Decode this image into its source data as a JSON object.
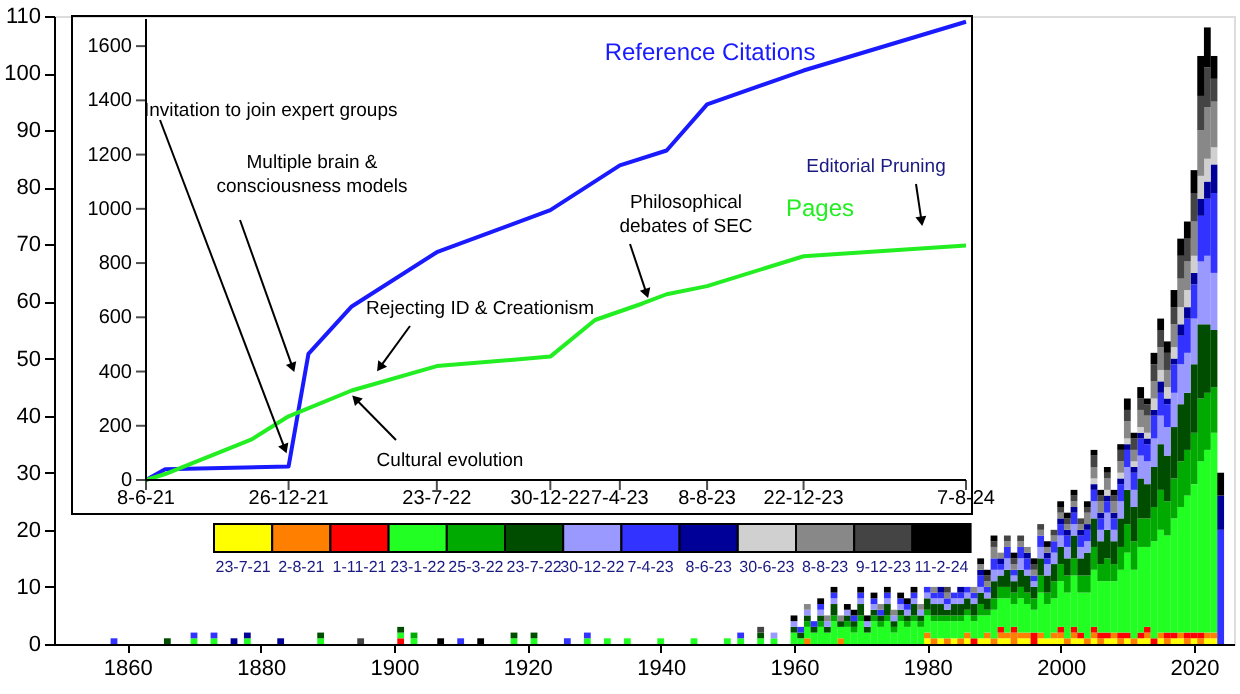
{
  "chart_data": [
    {
      "type": "bar",
      "stacked": true,
      "legend": "left",
      "x": [
        1858,
        1861,
        1866,
        1870,
        1873,
        1876,
        1878,
        1883,
        1889,
        1895,
        1901,
        1903,
        1907,
        1910,
        1913,
        1918,
        1921,
        1926,
        1929,
        1932,
        1935,
        1940,
        1945,
        1950,
        1952,
        1955,
        1957,
        1960,
        1961,
        1962,
        1963,
        1964,
        1965,
        1966,
        1967,
        1968,
        1969,
        1970,
        1971,
        1972,
        1973,
        1974,
        1975,
        1976,
        1977,
        1978,
        1979,
        1980,
        1981,
        1982,
        1983,
        1984,
        1985,
        1986,
        1987,
        1988,
        1989,
        1990,
        1991,
        1992,
        1993,
        1994,
        1995,
        1996,
        1997,
        1998,
        1999,
        2000,
        2001,
        2002,
        2003,
        2004,
        2005,
        2006,
        2007,
        2008,
        2009,
        2010,
        2011,
        2012,
        2013,
        2014,
        2015,
        2016,
        2017,
        2018,
        2019,
        2020,
        2021,
        2022,
        2023,
        2024
      ],
      "series": [
        {
          "name": "23-7-21",
          "color": "#ffff00",
          "values": [
            0,
            0,
            0,
            0,
            0,
            0,
            0,
            0,
            0,
            0,
            0,
            0,
            0,
            0,
            0,
            0,
            0,
            0,
            0,
            0,
            0,
            0,
            0,
            0,
            0,
            0,
            0,
            0,
            0,
            0,
            0,
            0,
            0,
            0,
            0,
            0,
            0,
            0,
            0,
            0,
            0,
            0,
            0,
            0,
            0,
            0,
            0,
            1,
            0,
            1,
            0,
            1,
            0,
            1,
            0,
            1,
            1,
            0,
            1,
            1,
            0,
            1,
            1,
            0,
            1,
            1,
            1,
            1,
            0,
            1,
            1,
            0,
            1,
            0,
            1,
            1,
            0,
            1,
            0,
            1,
            1,
            0,
            1,
            0,
            1,
            1,
            0,
            1,
            0,
            1,
            1,
            0
          ]
        },
        {
          "name": "2-8-21",
          "color": "#ff8000",
          "values": [
            0,
            0,
            0,
            0,
            0,
            0,
            0,
            0,
            0,
            0,
            0,
            0,
            0,
            0,
            0,
            0,
            0,
            0,
            0,
            0,
            0,
            0,
            0,
            0,
            0,
            0,
            0,
            0,
            0,
            1,
            0,
            0,
            0,
            0,
            1,
            0,
            0,
            0,
            0,
            0,
            0,
            0,
            0,
            0,
            0,
            0,
            0,
            1,
            1,
            0,
            1,
            0,
            1,
            1,
            0,
            0,
            1,
            1,
            1,
            1,
            2,
            1,
            1,
            0,
            1,
            0,
            1,
            1,
            1,
            1,
            0,
            1,
            1,
            1,
            0,
            1,
            1,
            0,
            1,
            0,
            1,
            0,
            1,
            1,
            0,
            1,
            1,
            0,
            1,
            1,
            1,
            0
          ]
        },
        {
          "name": "1-11-21",
          "color": "#ff0000",
          "values": [
            0,
            0,
            0,
            0,
            0,
            0,
            0,
            0,
            0,
            0,
            1,
            0,
            0,
            0,
            0,
            0,
            0,
            0,
            0,
            0,
            0,
            0,
            0,
            0,
            0,
            0,
            0,
            0,
            0,
            0,
            0,
            0,
            0,
            0,
            0,
            0,
            0,
            0,
            0,
            0,
            0,
            0,
            0,
            0,
            0,
            0,
            0,
            0,
            0,
            0,
            0,
            0,
            0,
            0,
            1,
            0,
            0,
            0,
            1,
            0,
            1,
            0,
            0,
            2,
            0,
            0,
            0,
            1,
            0,
            1,
            1,
            0,
            1,
            1,
            1,
            0,
            1,
            1,
            0,
            1,
            1,
            1,
            0,
            1,
            1,
            0,
            1,
            1,
            1,
            0,
            0,
            0
          ]
        },
        {
          "name": "23-1-22",
          "color": "#22ff22",
          "values": [
            0,
            0,
            0,
            1,
            1,
            0,
            1,
            0,
            1,
            0,
            1,
            1,
            0,
            0,
            0,
            1,
            1,
            0,
            1,
            1,
            1,
            1,
            1,
            1,
            1,
            1,
            1,
            2,
            1,
            2,
            2,
            3,
            2,
            4,
            2,
            3,
            2,
            4,
            2,
            4,
            3,
            4,
            2,
            4,
            3,
            4,
            3,
            3,
            3,
            3,
            3,
            3,
            3,
            3,
            3,
            4,
            3,
            5,
            5,
            6,
            4,
            6,
            5,
            4,
            7,
            6,
            6,
            8,
            8,
            9,
            7,
            8,
            10,
            9,
            9,
            9,
            11,
            14,
            12,
            15,
            14,
            17,
            18,
            17,
            20,
            22,
            24,
            26,
            30,
            32,
            35,
            0
          ]
        },
        {
          "name": "25-3-22",
          "color": "#00aa00",
          "values": [
            0,
            0,
            0,
            0,
            0,
            0,
            0,
            0,
            0,
            0,
            0,
            1,
            0,
            0,
            0,
            0,
            0,
            0,
            0,
            0,
            0,
            0,
            0,
            0,
            0,
            0,
            0,
            0,
            0,
            1,
            0,
            1,
            0,
            1,
            0,
            1,
            1,
            1,
            0,
            1,
            1,
            1,
            1,
            1,
            1,
            1,
            1,
            1,
            1,
            1,
            1,
            1,
            1,
            1,
            1,
            2,
            1,
            2,
            2,
            2,
            2,
            2,
            2,
            2,
            3,
            2,
            3,
            3,
            3,
            3,
            3,
            3,
            4,
            3,
            4,
            3,
            4,
            5,
            5,
            5,
            5,
            6,
            7,
            6,
            7,
            8,
            8,
            9,
            11,
            10,
            8,
            0
          ]
        },
        {
          "name": "23-7-22",
          "color": "#004d00",
          "values": [
            0,
            0,
            1,
            0,
            0,
            0,
            0,
            0,
            1,
            0,
            1,
            0,
            0,
            0,
            0,
            1,
            1,
            0,
            0,
            0,
            0,
            0,
            0,
            0,
            0,
            1,
            0,
            1,
            1,
            1,
            1,
            1,
            1,
            2,
            1,
            1,
            1,
            2,
            1,
            1,
            1,
            2,
            1,
            1,
            1,
            2,
            1,
            2,
            2,
            2,
            1,
            2,
            2,
            2,
            2,
            2,
            2,
            3,
            2,
            3,
            2,
            3,
            3,
            2,
            3,
            3,
            3,
            3,
            3,
            4,
            3,
            4,
            5,
            4,
            5,
            4,
            5,
            6,
            6,
            7,
            6,
            7,
            8,
            8,
            9,
            10,
            10,
            12,
            13,
            12,
            10,
            0
          ]
        },
        {
          "name": "30-12-22",
          "color": "#9999ff",
          "values": [
            0,
            0,
            0,
            0,
            0,
            0,
            0,
            0,
            0,
            0,
            0,
            0,
            0,
            0,
            0,
            0,
            0,
            0,
            0,
            0,
            0,
            0,
            0,
            0,
            0,
            0,
            1,
            1,
            0,
            1,
            0,
            1,
            1,
            1,
            0,
            1,
            0,
            1,
            1,
            1,
            0,
            1,
            1,
            1,
            1,
            1,
            1,
            1,
            1,
            1,
            1,
            1,
            1,
            1,
            1,
            1,
            1,
            2,
            1,
            2,
            1,
            2,
            1,
            1,
            2,
            2,
            2,
            2,
            2,
            2,
            2,
            2,
            3,
            2,
            3,
            2,
            3,
            4,
            3,
            4,
            4,
            5,
            5,
            5,
            6,
            7,
            7,
            8,
            11,
            12,
            10,
            0
          ]
        },
        {
          "name": "7-4-23",
          "color": "#3333ff",
          "values": [
            1,
            0,
            0,
            1,
            1,
            0,
            0,
            0,
            0,
            0,
            0,
            0,
            0,
            1,
            0,
            0,
            0,
            1,
            1,
            0,
            0,
            0,
            0,
            0,
            1,
            0,
            0,
            0,
            1,
            0,
            1,
            1,
            0,
            1,
            0,
            0,
            1,
            1,
            0,
            1,
            1,
            1,
            0,
            1,
            1,
            1,
            0,
            1,
            1,
            1,
            1,
            1,
            1,
            1,
            1,
            2,
            1,
            2,
            1,
            2,
            1,
            2,
            2,
            1,
            2,
            1,
            2,
            2,
            2,
            2,
            2,
            2,
            2,
            2,
            2,
            2,
            3,
            3,
            3,
            3,
            3,
            4,
            4,
            4,
            5,
            5,
            6,
            6,
            8,
            10,
            14,
            20
          ]
        },
        {
          "name": "8-6-23",
          "color": "#000099",
          "values": [
            0,
            0,
            0,
            0,
            0,
            1,
            1,
            1,
            0,
            0,
            0,
            0,
            0,
            0,
            0,
            0,
            0,
            0,
            0,
            0,
            0,
            0,
            0,
            0,
            0,
            0,
            0,
            0,
            0,
            0,
            0,
            0,
            0,
            0,
            0,
            0,
            0,
            0,
            0,
            0,
            0,
            0,
            0,
            0,
            0,
            0,
            0,
            0,
            0,
            1,
            0,
            0,
            1,
            0,
            0,
            1,
            0,
            0,
            1,
            0,
            0,
            0,
            1,
            0,
            0,
            1,
            0,
            1,
            1,
            1,
            1,
            1,
            1,
            1,
            1,
            1,
            1,
            1,
            1,
            1,
            1,
            1,
            2,
            1,
            1,
            2,
            2,
            2,
            3,
            3,
            5,
            6
          ]
        },
        {
          "name": "30-6-23",
          "color": "#d0d0d0",
          "values": [
            0,
            0,
            0,
            0,
            0,
            0,
            0,
            0,
            0,
            0,
            0,
            0,
            0,
            0,
            0,
            0,
            0,
            0,
            0,
            0,
            0,
            0,
            0,
            0,
            0,
            0,
            0,
            0,
            0,
            0,
            0,
            0,
            0,
            0,
            0,
            0,
            0,
            0,
            0,
            0,
            0,
            0,
            0,
            0,
            0,
            0,
            0,
            0,
            0,
            0,
            0,
            0,
            0,
            0,
            0,
            0,
            0,
            0,
            0,
            0,
            0,
            0,
            0,
            0,
            0,
            0,
            0,
            0,
            0,
            0,
            0,
            0,
            1,
            0,
            1,
            0,
            1,
            1,
            1,
            1,
            1,
            2,
            2,
            2,
            2,
            3,
            3,
            3,
            4,
            4,
            3,
            0
          ]
        },
        {
          "name": "8-8-23",
          "color": "#888888",
          "values": [
            0,
            0,
            0,
            0,
            0,
            0,
            0,
            0,
            0,
            0,
            0,
            0,
            0,
            0,
            0,
            0,
            0,
            0,
            0,
            0,
            0,
            0,
            0,
            0,
            0,
            0,
            0,
            0,
            0,
            1,
            0,
            0,
            1,
            0,
            1,
            0,
            0,
            0,
            0,
            0,
            1,
            0,
            1,
            0,
            0,
            0,
            1,
            0,
            1,
            0,
            1,
            0,
            0,
            0,
            1,
            1,
            1,
            2,
            1,
            1,
            1,
            1,
            1,
            1,
            1,
            1,
            1,
            1,
            1,
            1,
            1,
            2,
            2,
            2,
            2,
            2,
            2,
            3,
            2,
            3,
            3,
            3,
            4,
            3,
            4,
            5,
            5,
            6,
            8,
            9,
            8,
            0
          ]
        },
        {
          "name": "9-12-23",
          "color": "#444444",
          "values": [
            0,
            0,
            0,
            0,
            0,
            0,
            0,
            0,
            0,
            1,
            0,
            0,
            0,
            0,
            0,
            0,
            0,
            0,
            0,
            0,
            0,
            0,
            0,
            0,
            0,
            1,
            0,
            0,
            0,
            0,
            0,
            0,
            0,
            0,
            0,
            0,
            0,
            0,
            0,
            0,
            0,
            0,
            0,
            0,
            0,
            0,
            0,
            0,
            0,
            0,
            1,
            0,
            0,
            0,
            0,
            0,
            1,
            1,
            0,
            1,
            1,
            1,
            0,
            1,
            1,
            0,
            1,
            1,
            1,
            1,
            1,
            1,
            2,
            1,
            1,
            1,
            2,
            2,
            2,
            2,
            2,
            3,
            3,
            3,
            3,
            4,
            4,
            5,
            6,
            7,
            4,
            0
          ]
        },
        {
          "name": "11-2-24",
          "color": "#000000",
          "values": [
            0,
            0,
            0,
            0,
            0,
            0,
            0,
            0,
            0,
            0,
            0,
            0,
            1,
            0,
            1,
            0,
            0,
            0,
            0,
            0,
            0,
            0,
            0,
            0,
            0,
            0,
            0,
            1,
            0,
            0,
            0,
            1,
            0,
            1,
            0,
            1,
            1,
            1,
            1,
            1,
            0,
            1,
            0,
            1,
            1,
            1,
            0,
            0,
            0,
            0,
            0,
            0,
            0,
            0,
            0,
            1,
            1,
            1,
            0,
            0,
            1,
            0,
            0,
            1,
            0,
            1,
            0,
            1,
            1,
            1,
            0,
            1,
            1,
            1,
            1,
            1,
            1,
            2,
            1,
            2,
            1,
            2,
            2,
            2,
            3,
            3,
            3,
            4,
            7,
            7,
            4,
            4
          ]
        }
      ],
      "xlim": [
        1849,
        2026
      ],
      "xticks": [
        1860,
        1880,
        1900,
        1920,
        1940,
        1960,
        1980,
        2000,
        2020
      ],
      "ylim": [
        0,
        110
      ],
      "yticks": [
        0,
        10,
        20,
        30,
        40,
        50,
        60,
        70,
        80,
        90,
        100,
        110
      ],
      "grid": false
    },
    {
      "type": "line",
      "series": [
        {
          "name": "Reference  Citations",
          "color": "#1a1aff",
          "x": [
            "2021-06-08",
            "2021-07-05",
            "2021-12-26",
            "2022-01-23",
            "2022-03-25",
            "2022-07-23",
            "2022-12-30",
            "2023-04-07",
            "2023-06-12",
            "2023-08-08",
            "2023-12-22",
            "2024-08-07"
          ],
          "values": [
            0,
            40,
            50,
            465,
            640,
            840,
            995,
            1160,
            1215,
            1385,
            1510,
            1690
          ]
        },
        {
          "name": "Pages",
          "color": "#22ee22",
          "x": [
            "2021-06-08",
            "2021-07-05",
            "2021-11-04",
            "2021-12-26",
            "2022-03-25",
            "2022-07-23",
            "2022-12-30",
            "2023-03-03",
            "2023-05-08",
            "2023-06-12",
            "2023-08-08",
            "2023-12-22",
            "2024-08-07"
          ],
          "values": [
            0,
            22,
            150,
            235,
            330,
            420,
            455,
            590,
            650,
            685,
            715,
            825,
            865
          ]
        }
      ],
      "xlim": [
        "2021-06-08",
        "2024-08-07"
      ],
      "xticks": [
        {
          "value": "2021-06-08",
          "label": "8-6-21"
        },
        {
          "value": "2021-12-26",
          "label": "26-12-21"
        },
        {
          "value": "2022-07-23",
          "label": "23-7-22"
        },
        {
          "value": "2022-12-30",
          "label": "30-12-22"
        },
        {
          "value": "2023-04-07",
          "label": "7-4-23"
        },
        {
          "value": "2023-08-08",
          "label": "8-8-23"
        },
        {
          "value": "2023-12-22",
          "label": "22-12-23"
        },
        {
          "value": "2024-08-07",
          "label": "7-8-24"
        }
      ],
      "ylim": [
        0,
        1700
      ],
      "yticks": [
        0,
        200,
        400,
        600,
        800,
        1000,
        1200,
        1400,
        1600
      ],
      "grid": false,
      "annotations": [
        {
          "text": "Invitation to join expert groups",
          "x": "2021-12-20",
          "y": 120
        },
        {
          "text": "Multiple brain &\nconsciousness models",
          "x": "2021-12-31",
          "y": 420
        },
        {
          "text": "Rejecting ID & Creationism",
          "x": "2022-05-05",
          "y": 420
        },
        {
          "text": "Cultural evolution",
          "x": "2022-04-01",
          "y": 295
        },
        {
          "text": "Philosophical\ndebates of SEC",
          "x": "2023-05-14",
          "y": 693
        },
        {
          "text": "Editorial Pruning",
          "x": "2024-06-05",
          "y": 960
        }
      ]
    }
  ]
}
